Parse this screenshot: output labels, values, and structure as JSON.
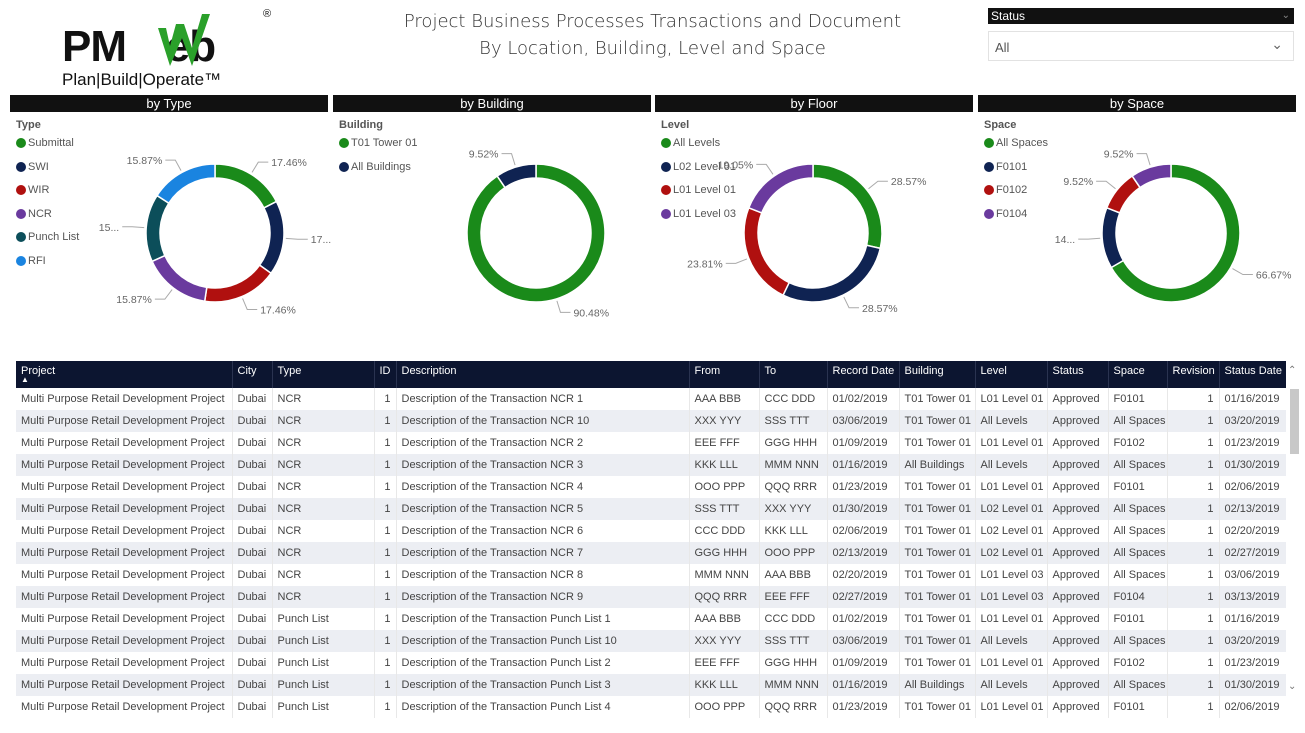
{
  "logo": {
    "text": "PMWeb",
    "reg": "®",
    "tagline": "Plan|Build|Operate™"
  },
  "title": {
    "line1": "Project Business Processes Transactions and Document",
    "line2": "By Location, Building, Level and Space"
  },
  "slicer": {
    "label": "Status",
    "value": "All"
  },
  "colors": {
    "green": "#1a8a1a",
    "navy": "#0f2352",
    "red": "#b0100f",
    "purple": "#6a3a9e",
    "teal": "#0c4e5a",
    "blue": "#1a84e0"
  },
  "chart_data": [
    {
      "type": "pie",
      "title": "by Type",
      "legend_title": "Type",
      "categories": [
        "Submittal",
        "SWI",
        "WIR",
        "NCR",
        "Punch List",
        "RFI"
      ],
      "values": [
        17.46,
        17.46,
        17.46,
        15.87,
        15.87,
        15.87
      ],
      "colors": [
        "#1a8a1a",
        "#0f2352",
        "#b0100f",
        "#6a3a9e",
        "#0c4e5a",
        "#1a84e0"
      ],
      "data_labels": [
        "17.46%",
        "17...",
        "17.46%",
        "15.87%",
        "15...",
        "15.87%"
      ]
    },
    {
      "type": "pie",
      "title": "by Building",
      "legend_title": "Building",
      "categories": [
        "T01 Tower 01",
        "All Buildings"
      ],
      "values": [
        90.48,
        9.52
      ],
      "colors": [
        "#1a8a1a",
        "#0f2352"
      ],
      "data_labels": [
        "90.48%",
        "9.52%"
      ]
    },
    {
      "type": "pie",
      "title": "by Floor",
      "legend_title": "Level",
      "categories": [
        "All Levels",
        "L02 Level 01",
        "L01 Level 01",
        "L01 Level 03"
      ],
      "values": [
        28.57,
        28.57,
        23.81,
        19.05
      ],
      "colors": [
        "#1a8a1a",
        "#0f2352",
        "#b0100f",
        "#6a3a9e"
      ],
      "data_labels": [
        "28.57%",
        "28.57%",
        "23.81%",
        "19.05%"
      ]
    },
    {
      "type": "pie",
      "title": "by Space",
      "legend_title": "Space",
      "categories": [
        "All Spaces",
        "F0101",
        "F0102",
        "F0104"
      ],
      "values": [
        66.67,
        14.29,
        9.52,
        9.52
      ],
      "colors": [
        "#1a8a1a",
        "#0f2352",
        "#b0100f",
        "#6a3a9e"
      ],
      "data_labels": [
        "66.67%",
        "14...",
        "9.52%",
        "9.52%"
      ]
    }
  ],
  "table": {
    "columns": [
      "Project",
      "City",
      "Type",
      "ID",
      "Description",
      "From",
      "To",
      "Record Date",
      "Building",
      "Level",
      "Status",
      "Space",
      "Revision",
      "Status Date"
    ],
    "rows": [
      [
        "Multi Purpose Retail Development Project",
        "Dubai",
        "NCR",
        "1",
        "Description of the Transaction NCR 1",
        "AAA BBB",
        "CCC DDD",
        "01/02/2019",
        "T01 Tower 01",
        "L01 Level 01",
        "Approved",
        "F0101",
        "1",
        "01/16/2019"
      ],
      [
        "Multi Purpose Retail Development Project",
        "Dubai",
        "NCR",
        "1",
        "Description of the Transaction NCR 10",
        "XXX YYY",
        "SSS TTT",
        "03/06/2019",
        "T01 Tower 01",
        "All Levels",
        "Approved",
        "All Spaces",
        "1",
        "03/20/2019"
      ],
      [
        "Multi Purpose Retail Development Project",
        "Dubai",
        "NCR",
        "1",
        "Description of the Transaction NCR 2",
        "EEE FFF",
        "GGG HHH",
        "01/09/2019",
        "T01 Tower 01",
        "L01 Level 01",
        "Approved",
        "F0102",
        "1",
        "01/23/2019"
      ],
      [
        "Multi Purpose Retail Development Project",
        "Dubai",
        "NCR",
        "1",
        "Description of the Transaction NCR 3",
        "KKK LLL",
        "MMM NNN",
        "01/16/2019",
        "All Buildings",
        "All Levels",
        "Approved",
        "All Spaces",
        "1",
        "01/30/2019"
      ],
      [
        "Multi Purpose Retail Development Project",
        "Dubai",
        "NCR",
        "1",
        "Description of the Transaction NCR 4",
        "OOO PPP",
        "QQQ RRR",
        "01/23/2019",
        "T01 Tower 01",
        "L01 Level 01",
        "Approved",
        "F0101",
        "1",
        "02/06/2019"
      ],
      [
        "Multi Purpose Retail Development Project",
        "Dubai",
        "NCR",
        "1",
        "Description of the Transaction NCR 5",
        "SSS TTT",
        "XXX YYY",
        "01/30/2019",
        "T01 Tower 01",
        "L02 Level 01",
        "Approved",
        "All Spaces",
        "1",
        "02/13/2019"
      ],
      [
        "Multi Purpose Retail Development Project",
        "Dubai",
        "NCR",
        "1",
        "Description of the Transaction NCR 6",
        "CCC DDD",
        "KKK LLL",
        "02/06/2019",
        "T01 Tower 01",
        "L02 Level 01",
        "Approved",
        "All Spaces",
        "1",
        "02/20/2019"
      ],
      [
        "Multi Purpose Retail Development Project",
        "Dubai",
        "NCR",
        "1",
        "Description of the Transaction NCR 7",
        "GGG HHH",
        "OOO PPP",
        "02/13/2019",
        "T01 Tower 01",
        "L02 Level 01",
        "Approved",
        "All Spaces",
        "1",
        "02/27/2019"
      ],
      [
        "Multi Purpose Retail Development Project",
        "Dubai",
        "NCR",
        "1",
        "Description of the Transaction NCR 8",
        "MMM NNN",
        "AAA BBB",
        "02/20/2019",
        "T01 Tower 01",
        "L01 Level 03",
        "Approved",
        "All Spaces",
        "1",
        "03/06/2019"
      ],
      [
        "Multi Purpose Retail Development Project",
        "Dubai",
        "NCR",
        "1",
        "Description of the Transaction NCR 9",
        "QQQ RRR",
        "EEE FFF",
        "02/27/2019",
        "T01 Tower 01",
        "L01 Level 03",
        "Approved",
        "F0104",
        "1",
        "03/13/2019"
      ],
      [
        "Multi Purpose Retail Development Project",
        "Dubai",
        "Punch List",
        "1",
        "Description of the Transaction Punch List 1",
        "AAA BBB",
        "CCC DDD",
        "01/02/2019",
        "T01 Tower 01",
        "L01 Level 01",
        "Approved",
        "F0101",
        "1",
        "01/16/2019"
      ],
      [
        "Multi Purpose Retail Development Project",
        "Dubai",
        "Punch List",
        "1",
        "Description of the Transaction Punch List 10",
        "XXX YYY",
        "SSS TTT",
        "03/06/2019",
        "T01 Tower 01",
        "All Levels",
        "Approved",
        "All Spaces",
        "1",
        "03/20/2019"
      ],
      [
        "Multi Purpose Retail Development Project",
        "Dubai",
        "Punch List",
        "1",
        "Description of the Transaction Punch List 2",
        "EEE FFF",
        "GGG HHH",
        "01/09/2019",
        "T01 Tower 01",
        "L01 Level 01",
        "Approved",
        "F0102",
        "1",
        "01/23/2019"
      ],
      [
        "Multi Purpose Retail Development Project",
        "Dubai",
        "Punch List",
        "1",
        "Description of the Transaction Punch List 3",
        "KKK LLL",
        "MMM NNN",
        "01/16/2019",
        "All Buildings",
        "All Levels",
        "Approved",
        "All Spaces",
        "1",
        "01/30/2019"
      ],
      [
        "Multi Purpose Retail Development Project",
        "Dubai",
        "Punch List",
        "1",
        "Description of the Transaction Punch List 4",
        "OOO PPP",
        "QQQ RRR",
        "01/23/2019",
        "T01 Tower 01",
        "L01 Level 01",
        "Approved",
        "F0101",
        "1",
        "02/06/2019"
      ]
    ]
  }
}
